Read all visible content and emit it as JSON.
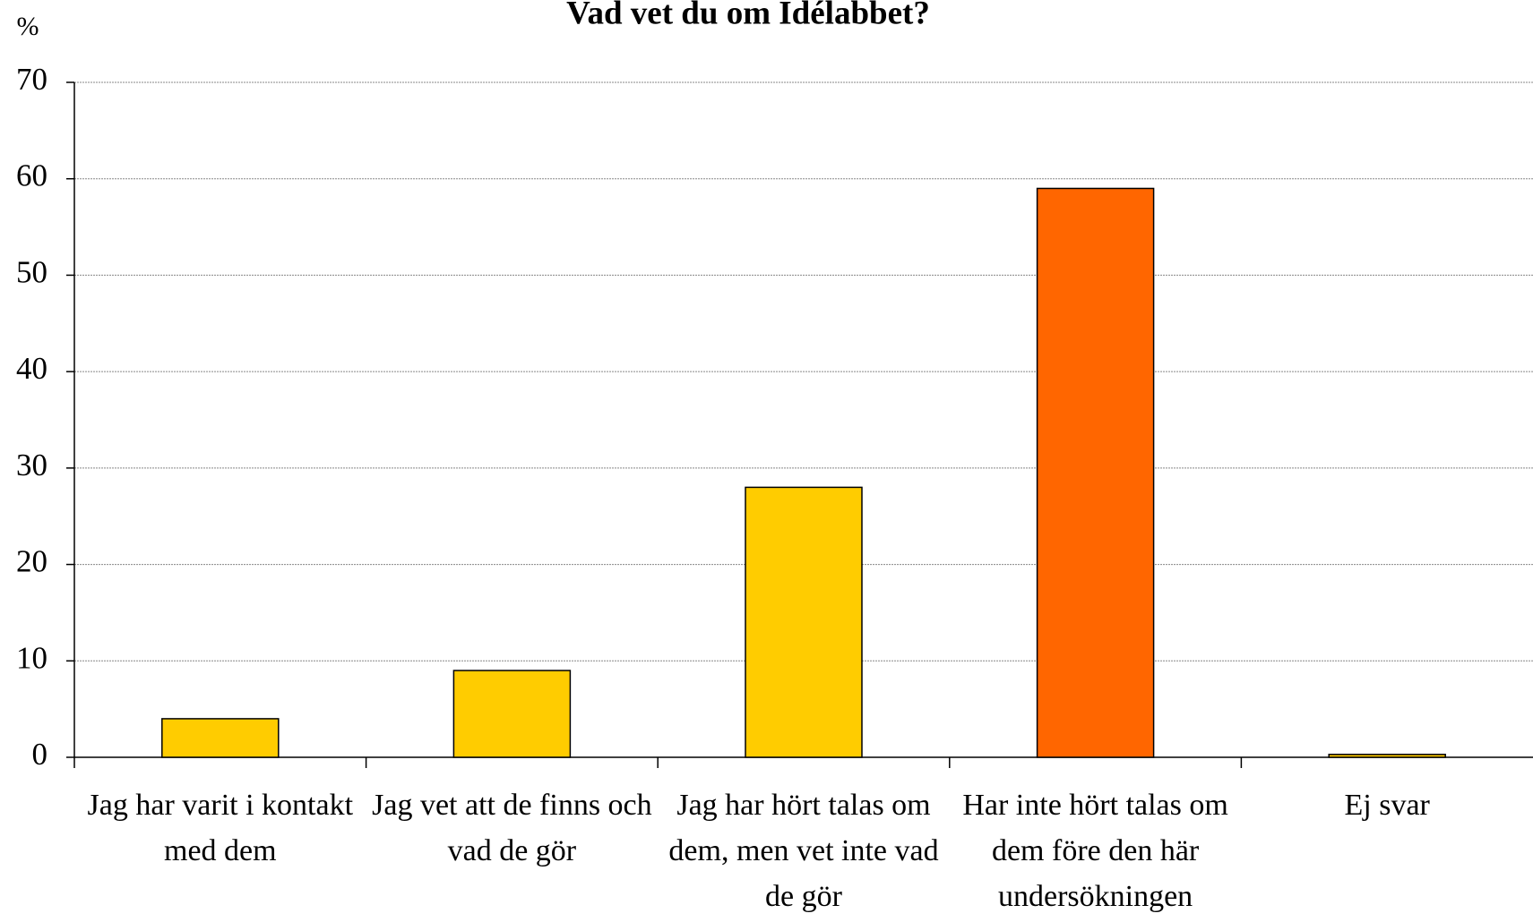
{
  "chart_data": {
    "type": "bar",
    "title": "Vad vet du om Idélabbet?",
    "y_label": "%",
    "categories": [
      "Jag har varit i kontakt med dem",
      "Jag vet att de finns och vad de gör",
      "Jag har hört talas om dem, men vet inte vad de gör",
      "Har inte hört talas om dem före den här undersökningen",
      "Ej svar"
    ],
    "values": [
      4,
      9,
      28,
      59,
      0.3
    ],
    "colors": [
      "#ffcc00",
      "#ffcc00",
      "#ffcc00",
      "#ff6600",
      "#ffcc00"
    ],
    "ylim": [
      0,
      70
    ],
    "yticks": [
      0,
      10,
      20,
      30,
      40,
      50,
      60,
      70
    ],
    "grid": true
  }
}
